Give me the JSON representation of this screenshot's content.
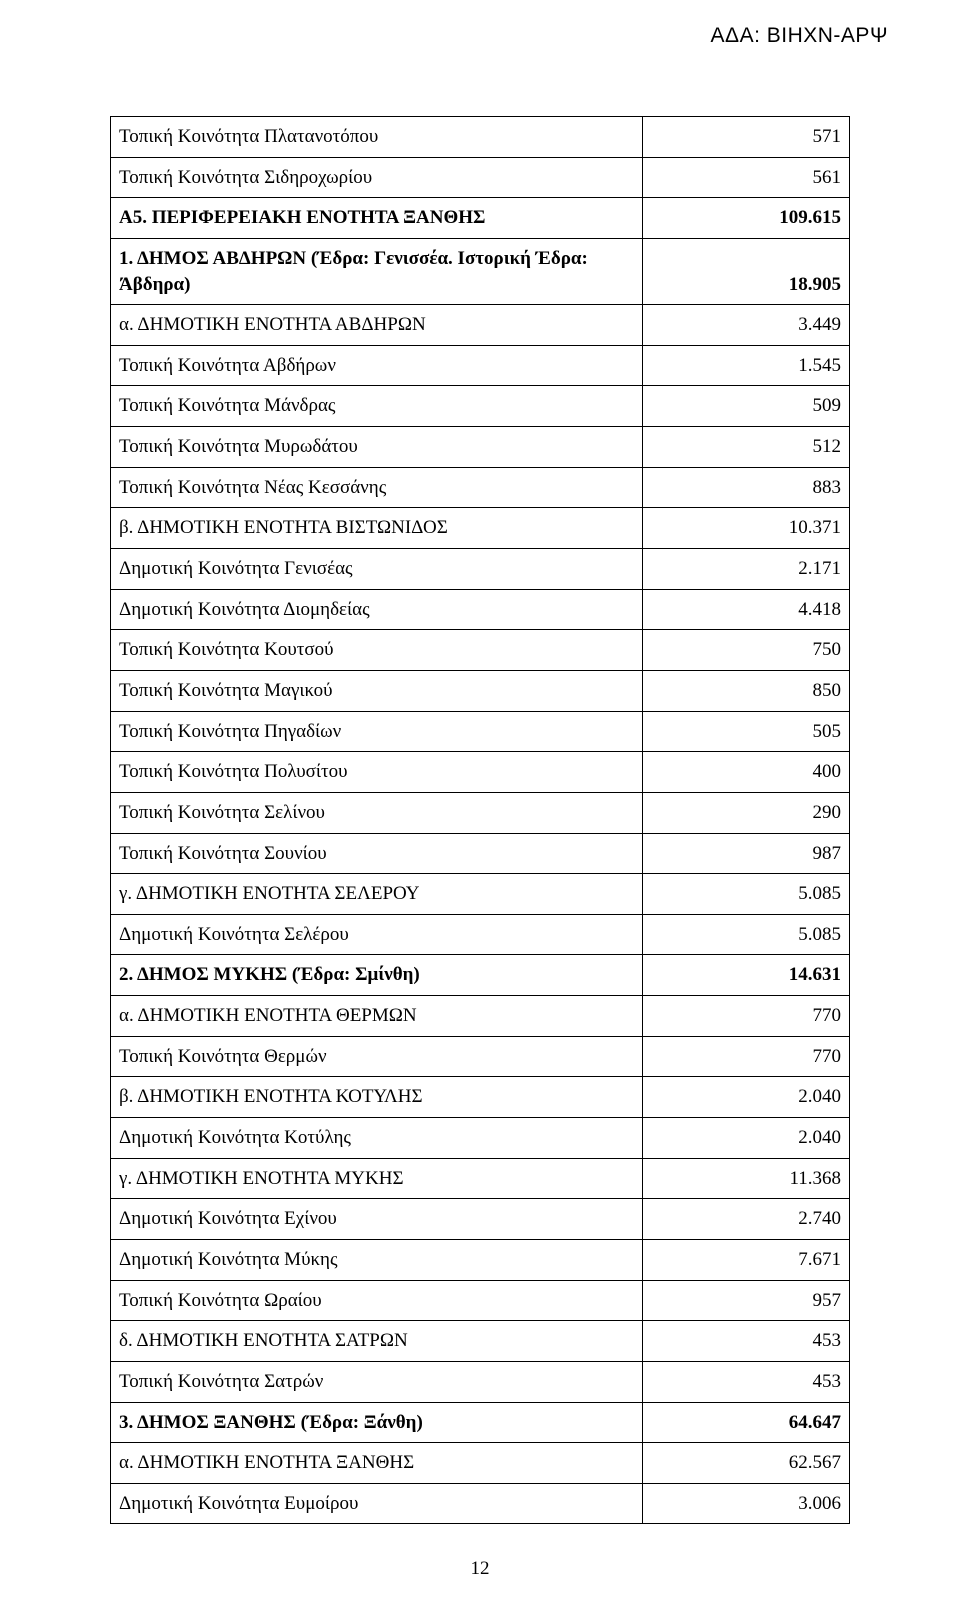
{
  "header": {
    "code": "ΑΔΑ: ΒΙΗΧΝ-ΑΡΨ"
  },
  "page_number": "12",
  "rows": [
    {
      "label": "Τοπική Κοινότητα Πλατανοτόπου",
      "value": "571",
      "bold": false
    },
    {
      "label": "Τοπική Κοινότητα Σιδηροχωρίου",
      "value": "561",
      "bold": false
    },
    {
      "label": "Α5. ΠΕΡΙΦΕΡΕΙΑΚΗ ΕΝΟΤΗΤΑ ΞΑΝΘΗΣ",
      "value": "109.615",
      "bold": true
    },
    {
      "label": "1. ΔΗΜΟΣ ΑΒΔΗΡΩΝ (Έδρα: Γενισσέα. Ιστορική Έδρα: Άβδηρα)",
      "value": "18.905",
      "bold": true
    },
    {
      "label": "α. ΔΗΜΟΤΙΚΗ ΕΝΟΤΗΤΑ ΑΒΔΗΡΩΝ",
      "value": "3.449",
      "bold": false
    },
    {
      "label": "Τοπική Κοινότητα Αβδήρων",
      "value": "1.545",
      "bold": false
    },
    {
      "label": "Τοπική Κοινότητα Μάνδρας",
      "value": "509",
      "bold": false
    },
    {
      "label": "Τοπική Κοινότητα Μυρωδάτου",
      "value": "512",
      "bold": false
    },
    {
      "label": "Τοπική Κοινότητα Νέας Κεσσάνης",
      "value": "883",
      "bold": false
    },
    {
      "label": "β. ΔΗΜΟΤΙΚΗ ΕΝΟΤΗΤΑ ΒΙΣΤΩΝΙΔΟΣ",
      "value": "10.371",
      "bold": false
    },
    {
      "label": "Δημοτική Κοινότητα Γενισέας",
      "value": "2.171",
      "bold": false
    },
    {
      "label": "Δημοτική Κοινότητα Διομηδείας",
      "value": "4.418",
      "bold": false
    },
    {
      "label": "Τοπική Κοινότητα Κουτσού",
      "value": "750",
      "bold": false
    },
    {
      "label": "Τοπική Κοινότητα Μαγικού",
      "value": "850",
      "bold": false
    },
    {
      "label": "Τοπική Κοινότητα Πηγαδίων",
      "value": "505",
      "bold": false
    },
    {
      "label": "Τοπική Κοινότητα Πολυσίτου",
      "value": "400",
      "bold": false
    },
    {
      "label": "Τοπική Κοινότητα Σελίνου",
      "value": "290",
      "bold": false
    },
    {
      "label": "Τοπική Κοινότητα Σουνίου",
      "value": "987",
      "bold": false
    },
    {
      "label": "γ. ΔΗΜΟΤΙΚΗ ΕΝΟΤΗΤΑ ΣΕΛΕΡΟΥ",
      "value": "5.085",
      "bold": false
    },
    {
      "label": "Δημοτική Κοινότητα Σελέρου",
      "value": "5.085",
      "bold": false
    },
    {
      "label": "2. ΔΗΜΟΣ ΜΥΚΗΣ (Έδρα: Σμίνθη)",
      "value": "14.631",
      "bold": true
    },
    {
      "label": "α. ΔΗΜΟΤΙΚΗ ΕΝΟΤΗΤΑ ΘΕΡΜΩΝ",
      "value": "770",
      "bold": false
    },
    {
      "label": "Τοπική Κοινότητα Θερμών",
      "value": "770",
      "bold": false
    },
    {
      "label": "β. ΔΗΜΟΤΙΚΗ ΕΝΟΤΗΤΑ ΚΟΤΥΛΗΣ",
      "value": "2.040",
      "bold": false
    },
    {
      "label": "Δημοτική Κοινότητα Κοτύλης",
      "value": "2.040",
      "bold": false
    },
    {
      "label": "γ. ΔΗΜΟΤΙΚΗ ΕΝΟΤΗΤΑ ΜΥΚΗΣ",
      "value": "11.368",
      "bold": false
    },
    {
      "label": "Δημοτική Κοινότητα Εχίνου",
      "value": "2.740",
      "bold": false
    },
    {
      "label": "Δημοτική Κοινότητα Μύκης",
      "value": "7.671",
      "bold": false
    },
    {
      "label": "Τοπική Κοινότητα Ωραίου",
      "value": "957",
      "bold": false
    },
    {
      "label": "δ. ΔΗΜΟΤΙΚΗ ΕΝΟΤΗΤΑ ΣΑΤΡΩΝ",
      "value": "453",
      "bold": false
    },
    {
      "label": "Τοπική Κοινότητα Σατρών",
      "value": "453",
      "bold": false
    },
    {
      "label": "3. ΔΗΜΟΣ ΞΑΝΘΗΣ (Έδρα: Ξάνθη)",
      "value": "64.647",
      "bold": true
    },
    {
      "label": "α. ΔΗΜΟΤΙΚΗ ΕΝΟΤΗΤΑ ΞΑΝΘΗΣ",
      "value": "62.567",
      "bold": false
    },
    {
      "label": "Δημοτική Κοινότητα Ευμοίρου",
      "value": "3.006",
      "bold": false
    }
  ]
}
